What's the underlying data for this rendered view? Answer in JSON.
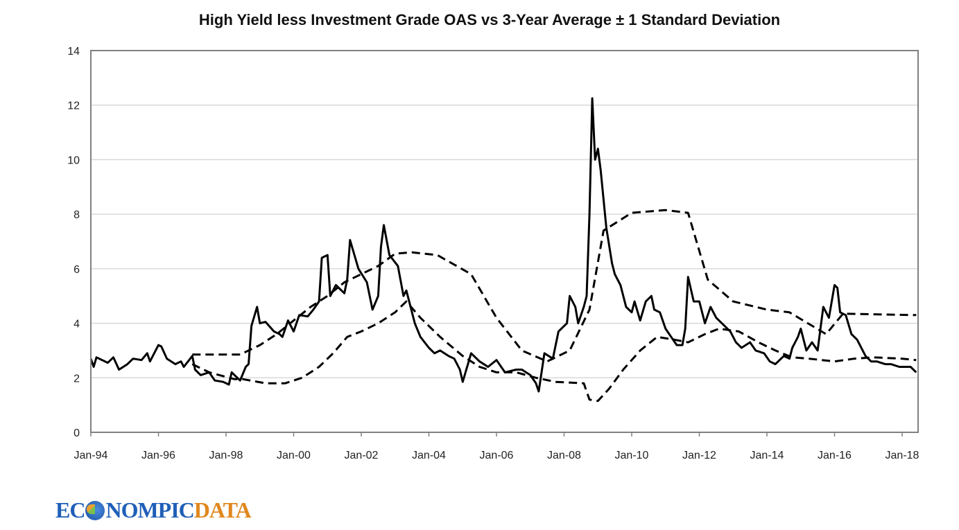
{
  "chart_data": {
    "type": "line",
    "title": "High Yield less Investment Grade OAS vs 3-Year Average ± 1 Standard  Deviation",
    "xlabel": "",
    "ylabel": "",
    "ylim": [
      0,
      14
    ],
    "yticks": [
      "0",
      "2",
      "4",
      "6",
      "8",
      "10",
      "12",
      "14"
    ],
    "xlim": [
      "1994-01",
      "2018-06"
    ],
    "xticks": [
      "Jan-94",
      "Jan-96",
      "Jan-98",
      "Jan-00",
      "Jan-02",
      "Jan-04",
      "Jan-06",
      "Jan-08",
      "Jan-10",
      "Jan-12",
      "Jan-14",
      "Jan-16",
      "Jan-18"
    ],
    "grid": "horizontal",
    "legend": "none",
    "series": [
      {
        "style": "solid",
        "color": "#000000",
        "points": [
          [
            "1994-01",
            2.7
          ],
          [
            "1994-02",
            2.4
          ],
          [
            "1994-03",
            2.75
          ],
          [
            "1994-07",
            2.55
          ],
          [
            "1994-09",
            2.75
          ],
          [
            "1994-11",
            2.3
          ],
          [
            "1995-02",
            2.5
          ],
          [
            "1995-04",
            2.7
          ],
          [
            "1995-07",
            2.65
          ],
          [
            "1995-09",
            2.9
          ],
          [
            "1995-10",
            2.6
          ],
          [
            "1996-01",
            3.2
          ],
          [
            "1996-02",
            3.15
          ],
          [
            "1996-04",
            2.7
          ],
          [
            "1996-07",
            2.5
          ],
          [
            "1996-09",
            2.6
          ],
          [
            "1996-10",
            2.4
          ],
          [
            "1997-01",
            2.8
          ],
          [
            "1997-02",
            2.3
          ],
          [
            "1997-04",
            2.1
          ],
          [
            "1997-07",
            2.2
          ],
          [
            "1997-09",
            1.9
          ],
          [
            "1997-12",
            1.85
          ],
          [
            "1998-02",
            1.75
          ],
          [
            "1998-03",
            2.2
          ],
          [
            "1998-06",
            1.9
          ],
          [
            "1998-08",
            2.4
          ],
          [
            "1998-09",
            2.5
          ],
          [
            "1998-10",
            3.9
          ],
          [
            "1998-12",
            4.6
          ],
          [
            "1999-01",
            4.0
          ],
          [
            "1999-03",
            4.05
          ],
          [
            "1999-06",
            3.7
          ],
          [
            "1999-08",
            3.6
          ],
          [
            "1999-09",
            3.5
          ],
          [
            "1999-11",
            4.1
          ],
          [
            "2000-01",
            3.7
          ],
          [
            "2000-03",
            4.3
          ],
          [
            "2000-06",
            4.25
          ],
          [
            "2000-08",
            4.5
          ],
          [
            "2000-10",
            4.8
          ],
          [
            "2000-11",
            6.4
          ],
          [
            "2001-01",
            6.5
          ],
          [
            "2001-02",
            5.0
          ],
          [
            "2001-04",
            5.4
          ],
          [
            "2001-07",
            5.1
          ],
          [
            "2001-08",
            5.6
          ],
          [
            "2001-09",
            7.05
          ],
          [
            "2001-12",
            6.0
          ],
          [
            "2002-03",
            5.5
          ],
          [
            "2002-05",
            4.5
          ],
          [
            "2002-07",
            5.0
          ],
          [
            "2002-08",
            6.8
          ],
          [
            "2002-09",
            7.6
          ],
          [
            "2002-11",
            6.5
          ],
          [
            "2003-02",
            6.1
          ],
          [
            "2003-04",
            5.0
          ],
          [
            "2003-05",
            5.2
          ],
          [
            "2003-08",
            4.0
          ],
          [
            "2003-10",
            3.5
          ],
          [
            "2004-01",
            3.1
          ],
          [
            "2004-03",
            2.9
          ],
          [
            "2004-05",
            3.0
          ],
          [
            "2004-08",
            2.8
          ],
          [
            "2004-10",
            2.7
          ],
          [
            "2004-12",
            2.3
          ],
          [
            "2005-01",
            1.85
          ],
          [
            "2005-04",
            2.9
          ],
          [
            "2005-07",
            2.6
          ],
          [
            "2005-10",
            2.4
          ],
          [
            "2006-01",
            2.65
          ],
          [
            "2006-04",
            2.2
          ],
          [
            "2006-08",
            2.3
          ],
          [
            "2006-10",
            2.3
          ],
          [
            "2007-01",
            2.1
          ],
          [
            "2007-03",
            1.8
          ],
          [
            "2007-04",
            1.5
          ],
          [
            "2007-06",
            2.9
          ],
          [
            "2007-09",
            2.7
          ],
          [
            "2007-11",
            3.7
          ],
          [
            "2008-02",
            4.0
          ],
          [
            "2008-03",
            5.0
          ],
          [
            "2008-05",
            4.6
          ],
          [
            "2008-06",
            4.0
          ],
          [
            "2008-08",
            4.6
          ],
          [
            "2008-09",
            5.0
          ],
          [
            "2008-10",
            8.0
          ],
          [
            "2008-11",
            12.25
          ],
          [
            "2008-12",
            10.0
          ],
          [
            "2009-01",
            10.4
          ],
          [
            "2009-02",
            9.6
          ],
          [
            "2009-04",
            7.5
          ],
          [
            "2009-06",
            6.2
          ],
          [
            "2009-07",
            5.8
          ],
          [
            "2009-09",
            5.4
          ],
          [
            "2009-11",
            4.6
          ],
          [
            "2010-01",
            4.4
          ],
          [
            "2010-02",
            4.8
          ],
          [
            "2010-04",
            4.1
          ],
          [
            "2010-06",
            4.8
          ],
          [
            "2010-08",
            5.0
          ],
          [
            "2010-09",
            4.5
          ],
          [
            "2010-11",
            4.4
          ],
          [
            "2011-01",
            3.8
          ],
          [
            "2011-03",
            3.5
          ],
          [
            "2011-05",
            3.2
          ],
          [
            "2011-07",
            3.2
          ],
          [
            "2011-08",
            3.8
          ],
          [
            "2011-09",
            5.7
          ],
          [
            "2011-11",
            4.8
          ],
          [
            "2012-01",
            4.8
          ],
          [
            "2012-03",
            4.0
          ],
          [
            "2012-05",
            4.6
          ],
          [
            "2012-07",
            4.2
          ],
          [
            "2012-09",
            4.0
          ],
          [
            "2012-12",
            3.7
          ],
          [
            "2013-02",
            3.3
          ],
          [
            "2013-04",
            3.1
          ],
          [
            "2013-07",
            3.3
          ],
          [
            "2013-09",
            3.0
          ],
          [
            "2013-12",
            2.9
          ],
          [
            "2014-02",
            2.6
          ],
          [
            "2014-04",
            2.5
          ],
          [
            "2014-07",
            2.8
          ],
          [
            "2014-09",
            2.7
          ],
          [
            "2014-10",
            3.1
          ],
          [
            "2014-12",
            3.5
          ],
          [
            "2015-01",
            3.8
          ],
          [
            "2015-03",
            3.0
          ],
          [
            "2015-05",
            3.3
          ],
          [
            "2015-07",
            3.0
          ],
          [
            "2015-09",
            4.6
          ],
          [
            "2015-11",
            4.2
          ],
          [
            "2016-01",
            5.4
          ],
          [
            "2016-02",
            5.3
          ],
          [
            "2016-03",
            4.4
          ],
          [
            "2016-05",
            4.3
          ],
          [
            "2016-07",
            3.6
          ],
          [
            "2016-09",
            3.4
          ],
          [
            "2016-12",
            2.8
          ],
          [
            "2017-02",
            2.6
          ],
          [
            "2017-04",
            2.6
          ],
          [
            "2017-07",
            2.5
          ],
          [
            "2017-09",
            2.5
          ],
          [
            "2017-12",
            2.4
          ],
          [
            "2018-02",
            2.4
          ],
          [
            "2018-04",
            2.4
          ],
          [
            "2018-06",
            2.2
          ]
        ]
      },
      {
        "style": "dashed",
        "color": "#000000",
        "points": [
          [
            "1997-01",
            2.85
          ],
          [
            "1998-06",
            2.85
          ],
          [
            "1999-01",
            3.2
          ],
          [
            "1999-07",
            3.6
          ],
          [
            "2000-01",
            4.1
          ],
          [
            "2000-07",
            4.6
          ],
          [
            "2001-01",
            5.0
          ],
          [
            "2001-07",
            5.5
          ],
          [
            "2002-01",
            5.8
          ],
          [
            "2002-07",
            6.1
          ],
          [
            "2003-01",
            6.55
          ],
          [
            "2003-07",
            6.6
          ],
          [
            "2004-04",
            6.5
          ],
          [
            "2005-04",
            5.8
          ],
          [
            "2006-01",
            4.2
          ],
          [
            "2006-10",
            3.0
          ],
          [
            "2007-07",
            2.6
          ],
          [
            "2008-03",
            3.0
          ],
          [
            "2008-10",
            4.5
          ],
          [
            "2009-03",
            7.4
          ],
          [
            "2010-01",
            8.05
          ],
          [
            "2011-01",
            8.15
          ],
          [
            "2011-09",
            8.05
          ],
          [
            "2012-04",
            5.6
          ],
          [
            "2013-01",
            4.8
          ],
          [
            "2014-01",
            4.5
          ],
          [
            "2014-09",
            4.4
          ],
          [
            "2015-10",
            3.6
          ],
          [
            "2016-04",
            4.35
          ],
          [
            "2018-06",
            4.3
          ]
        ]
      },
      {
        "style": "dashed",
        "color": "#000000",
        "points": [
          [
            "1997-01",
            2.5
          ],
          [
            "1997-07",
            2.2
          ],
          [
            "1998-04",
            1.95
          ],
          [
            "1998-07",
            1.95
          ],
          [
            "1999-03",
            1.8
          ],
          [
            "1999-10",
            1.8
          ],
          [
            "2000-04",
            2.0
          ],
          [
            "2000-10",
            2.4
          ],
          [
            "2001-03",
            2.9
          ],
          [
            "2001-08",
            3.5
          ],
          [
            "2002-01",
            3.7
          ],
          [
            "2002-07",
            4.0
          ],
          [
            "2003-01",
            4.4
          ],
          [
            "2003-05",
            4.8
          ],
          [
            "2003-10",
            4.2
          ],
          [
            "2004-05",
            3.5
          ],
          [
            "2005-01",
            2.8
          ],
          [
            "2005-07",
            2.4
          ],
          [
            "2006-01",
            2.2
          ],
          [
            "2006-08",
            2.2
          ],
          [
            "2007-03",
            2.0
          ],
          [
            "2007-10",
            1.85
          ],
          [
            "2008-08",
            1.8
          ],
          [
            "2008-10",
            1.2
          ],
          [
            "2009-01",
            1.15
          ],
          [
            "2009-05",
            1.6
          ],
          [
            "2009-10",
            2.3
          ],
          [
            "2010-04",
            3.0
          ],
          [
            "2010-10",
            3.5
          ],
          [
            "2011-04",
            3.4
          ],
          [
            "2011-09",
            3.3
          ],
          [
            "2012-03",
            3.6
          ],
          [
            "2012-08",
            3.8
          ],
          [
            "2013-03",
            3.7
          ],
          [
            "2013-10",
            3.3
          ],
          [
            "2014-04",
            3.0
          ],
          [
            "2014-10",
            2.75
          ],
          [
            "2015-04",
            2.7
          ],
          [
            "2016-01",
            2.6
          ],
          [
            "2016-08",
            2.7
          ],
          [
            "2017-03",
            2.75
          ],
          [
            "2018-01",
            2.7
          ],
          [
            "2018-06",
            2.65
          ]
        ]
      }
    ]
  },
  "logo": {
    "part1": "EC",
    "part2": "NOMPIC",
    "part3": "DATA"
  },
  "colors": {
    "line": "#000000",
    "grid": "#d9d9d9",
    "axis": "#808080",
    "logo_blue": "#1f5fb8",
    "logo_orange": "#e0871e"
  }
}
